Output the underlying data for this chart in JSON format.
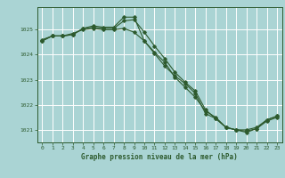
{
  "title": "Graphe pression niveau de la mer (hPa)",
  "background_color": "#aad4d4",
  "grid_color": "#ffffff",
  "line_color": "#2d5a2d",
  "xlim": [
    -0.5,
    23.5
  ],
  "ylim": [
    1020.5,
    1025.9
  ],
  "yticks": [
    1021,
    1022,
    1023,
    1024,
    1025
  ],
  "xticks": [
    0,
    1,
    2,
    3,
    4,
    5,
    6,
    7,
    8,
    9,
    10,
    11,
    12,
    13,
    14,
    15,
    16,
    17,
    18,
    19,
    20,
    21,
    22,
    23
  ],
  "line1_x": [
    0,
    1,
    2,
    3,
    4,
    5,
    6,
    7,
    8,
    9,
    10,
    11,
    12,
    13,
    14,
    15,
    16,
    17,
    18,
    19,
    20,
    21,
    22,
    23
  ],
  "line1_y": [
    1024.6,
    1024.75,
    1024.75,
    1024.85,
    1025.0,
    1025.05,
    1025.0,
    1025.0,
    1025.05,
    1024.9,
    1024.55,
    1024.1,
    1023.7,
    1023.1,
    1022.7,
    1022.3,
    1021.75,
    1021.5,
    1021.1,
    1021.0,
    1021.0,
    1021.1,
    1021.4,
    1021.55
  ],
  "line2_x": [
    0,
    1,
    2,
    3,
    4,
    5,
    6,
    7,
    8,
    9,
    10,
    11,
    12,
    13,
    14,
    15,
    16,
    17,
    18,
    19,
    20,
    21,
    22,
    23
  ],
  "line2_y": [
    1024.55,
    1024.75,
    1024.75,
    1024.8,
    1025.05,
    1025.1,
    1025.05,
    1025.05,
    1025.35,
    1025.4,
    1024.9,
    1024.35,
    1023.85,
    1023.3,
    1022.9,
    1022.55,
    1021.8,
    1021.45,
    1021.1,
    1021.0,
    1020.95,
    1021.05,
    1021.35,
    1021.5
  ],
  "line3_x": [
    0,
    1,
    2,
    3,
    4,
    5,
    6,
    7,
    8,
    9,
    10,
    11,
    12,
    13,
    14,
    15,
    16,
    17,
    18,
    19,
    20,
    21,
    22,
    23
  ],
  "line3_y": [
    1024.55,
    1024.75,
    1024.75,
    1024.8,
    1025.05,
    1025.15,
    1025.1,
    1025.1,
    1025.5,
    1025.5,
    1024.55,
    1024.05,
    1023.55,
    1023.15,
    1022.85,
    1022.45,
    1021.65,
    1021.45,
    1021.1,
    1021.0,
    1020.9,
    1021.05,
    1021.4,
    1021.55
  ]
}
